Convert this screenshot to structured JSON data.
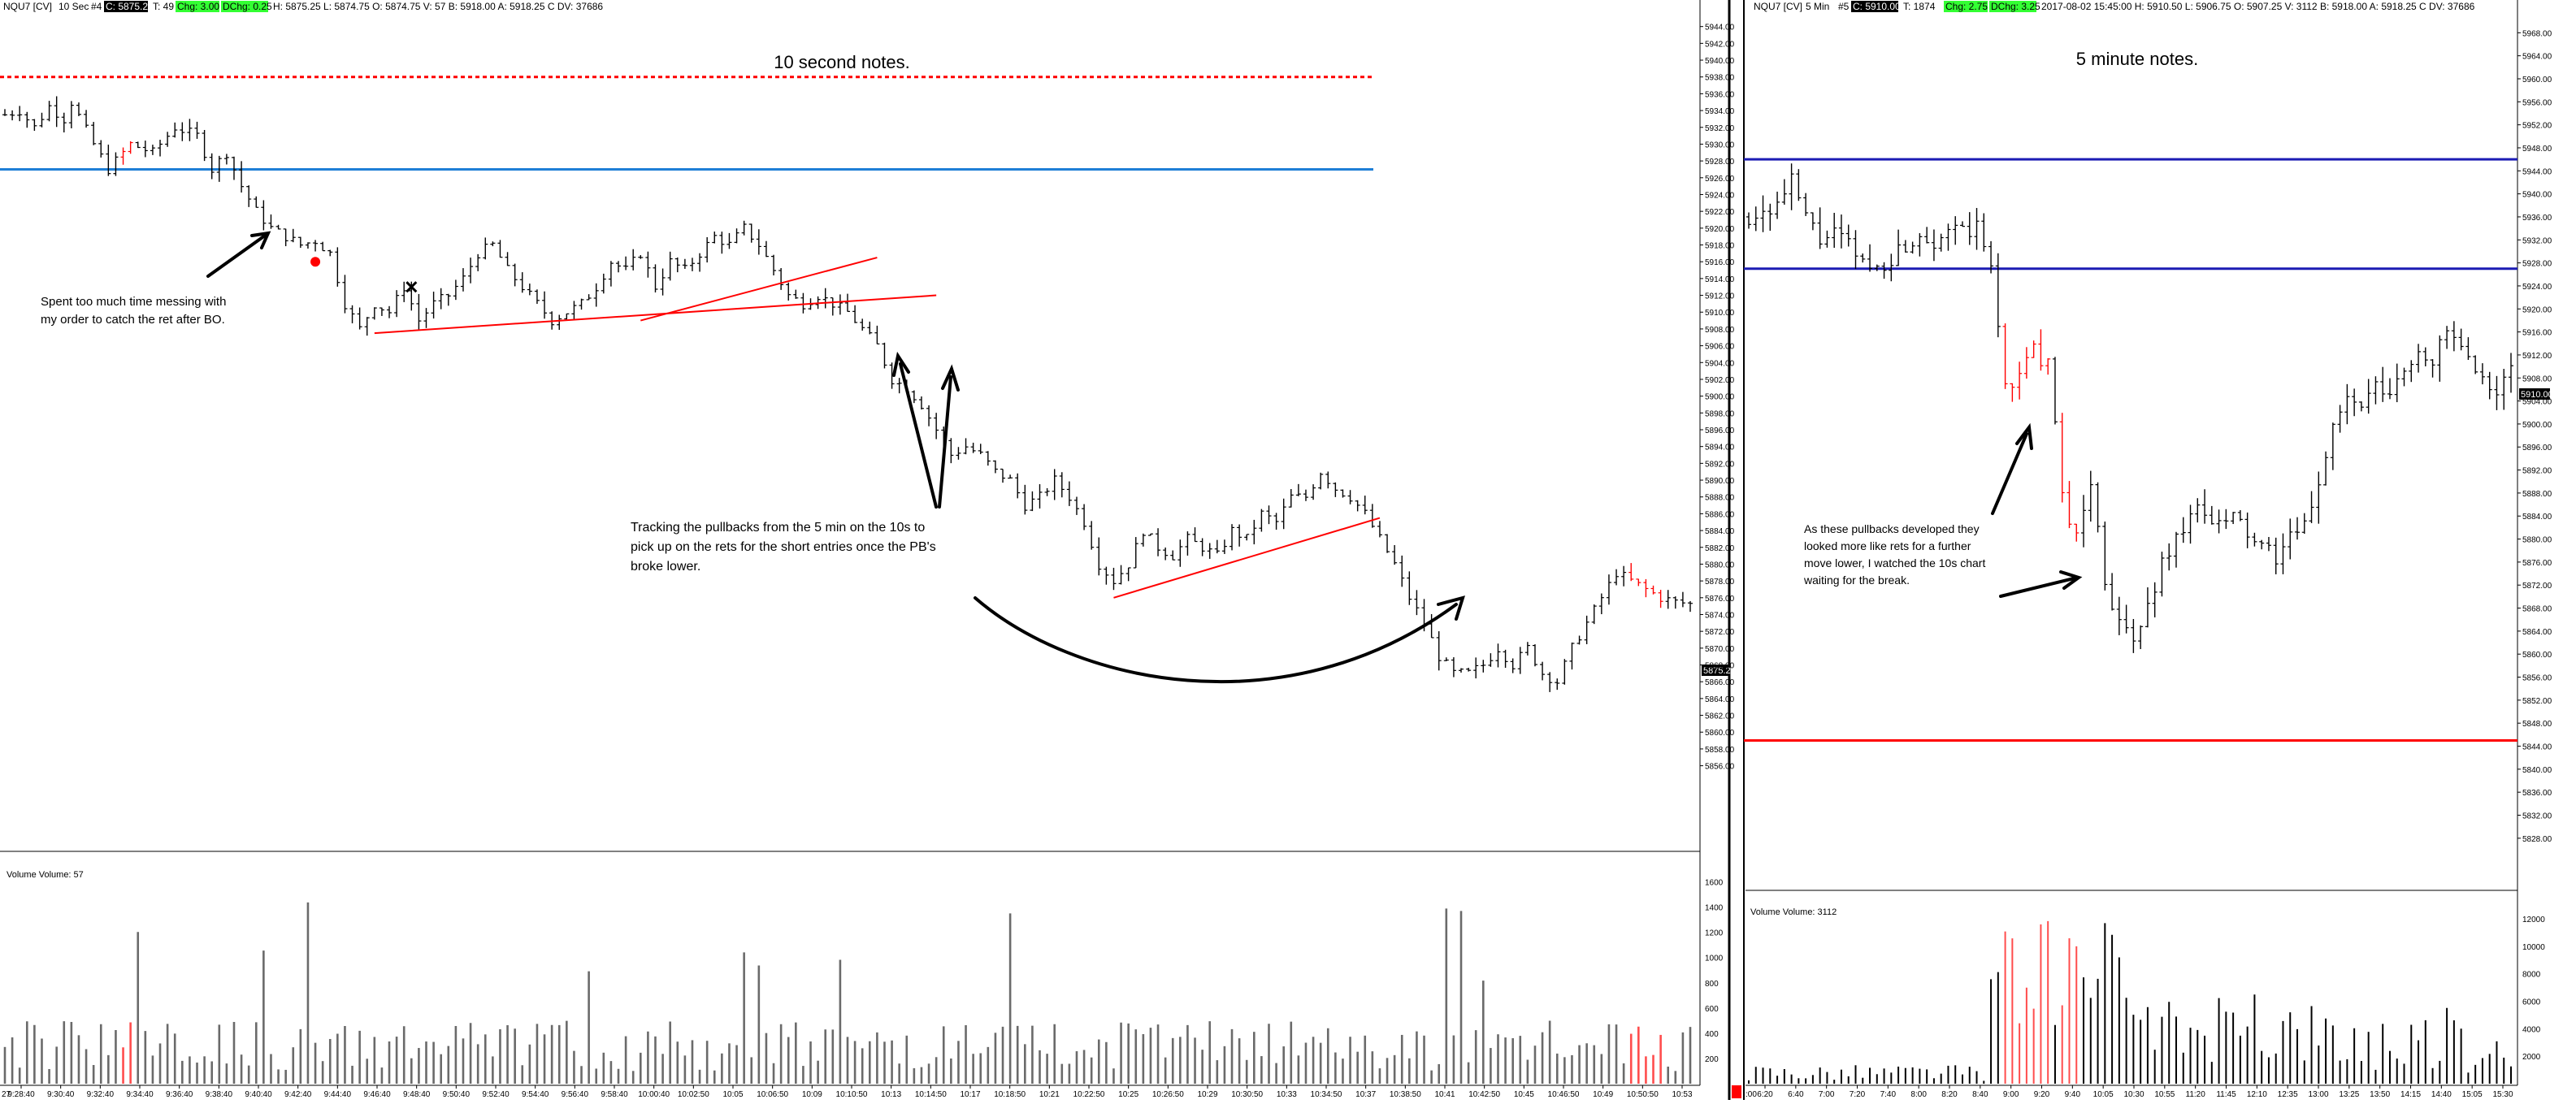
{
  "colors": {
    "green": "#33ff33",
    "red": "#ff0000",
    "blue": "#1f7fd6",
    "navy": "#1c1cb4",
    "black": "#000000",
    "gray": "#6a6a6a"
  },
  "left": {
    "header": {
      "symbol": "NQU7 [CV]",
      "period": "10 Sec",
      "id": "#4",
      "close": "C: 5875.25",
      "ticks": "T: 49",
      "chg1": "Chg: 3.00",
      "chg2": "DChg: 0.25",
      "info": "H: 5875.25 L: 5874.75 O: 5874.75 V: 57 B: 5918.00 A: 5918.25 C DV: 37686"
    },
    "title": "10 second notes.",
    "notes": [
      [
        "Spent too much time messing with",
        "my order to catch the ret after BO."
      ],
      [
        "Tracking the pullbacks from the 5 min on the 10s to",
        "pick up on the rets for the short entries once the PB's",
        "broke lower."
      ]
    ],
    "volume_label": "Volume  Volume: 57",
    "last_price": "5875.25",
    "x_first": "27"
  },
  "right": {
    "header": {
      "symbol": "NQU7 [CV]",
      "period": "5 Min",
      "id": "#5",
      "close": "C: 5910.00",
      "ticks": "T: 1874",
      "chg1": "Chg: 2.75",
      "chg2": "DChg: 3.25",
      "info": "2017-08-02 15:45:00 H: 5910.50 L: 5906.75 O: 5907.25 V: 3112 B: 5918.00 A: 5918.25 C DV: 37686"
    },
    "title": "5 minute notes.",
    "notes": [
      [
        "As these pullbacks developed they",
        "looked more like rets for a further",
        "move lower, I watched the 10s chart",
        "waiting for the break."
      ]
    ],
    "volume_label": "Volume  Volume: 3112",
    "last_price": "5910.00",
    "x_first": ":00"
  },
  "chart_data": [
    {
      "type": "bar",
      "title": "10 second notes.",
      "style": "ohlc",
      "ylim": [
        5846,
        5946
      ],
      "y_ticks": [
        "5944.00",
        "5942.00",
        "5940.00",
        "5938.00",
        "5936.00",
        "5934.00",
        "5932.00",
        "5930.00",
        "5928.00",
        "5926.00",
        "5924.00",
        "5922.00",
        "5920.00",
        "5918.00",
        "5916.00",
        "5914.00",
        "5912.00",
        "5910.00",
        "5908.00",
        "5906.00",
        "5904.00",
        "5902.00",
        "5900.00",
        "5898.00",
        "5896.00",
        "5894.00",
        "5892.00",
        "5890.00",
        "5888.00",
        "5886.00",
        "5884.00",
        "5882.00",
        "5880.00",
        "5878.00",
        "5876.00",
        "5874.00",
        "5872.00",
        "5870.00",
        "5868.00",
        "5866.00",
        "5864.00",
        "5862.00",
        "5860.00",
        "5858.00",
        "5856.00"
      ],
      "x_ticks": [
        "9:28:40",
        "9:30:40",
        "9:32:40",
        "9:34:40",
        "9:36:40",
        "9:38:40",
        "9:40:40",
        "9:42:40",
        "9:44:40",
        "9:46:40",
        "9:48:40",
        "9:50:40",
        "9:52:40",
        "9:54:40",
        "9:56:40",
        "9:58:40",
        "10:00:40",
        "10:02:50",
        "10:05",
        "10:06:50",
        "10:09",
        "10:10:50",
        "10:13",
        "10:14:50",
        "10:17",
        "10:18:50",
        "10:21",
        "10:22:50",
        "10:25",
        "10:26:50",
        "10:29",
        "10:30:50",
        "10:33",
        "10:34:50",
        "10:37",
        "10:38:50",
        "10:41",
        "10:42:50",
        "10:45",
        "10:46:50",
        "10:49",
        "10:50:50",
        "10:53"
      ],
      "price_path": [
        [
          0,
          5933.5
        ],
        [
          2,
          5934
        ],
        [
          4,
          5932
        ],
        [
          6,
          5934.5
        ],
        [
          8,
          5933
        ],
        [
          9,
          5935
        ],
        [
          12,
          5930
        ],
        [
          14,
          5927
        ],
        [
          17,
          5930
        ],
        [
          20,
          5929
        ],
        [
          23,
          5932
        ],
        [
          26,
          5931
        ],
        [
          28,
          5927
        ],
        [
          30,
          5929
        ],
        [
          32,
          5925
        ],
        [
          34,
          5922
        ],
        [
          36,
          5920
        ],
        [
          38,
          5919
        ],
        [
          40,
          5918
        ],
        [
          42,
          5918.5
        ],
        [
          44,
          5917
        ],
        [
          46,
          5911
        ],
        [
          48,
          5908
        ],
        [
          50,
          5911
        ],
        [
          52,
          5910
        ],
        [
          54,
          5913
        ],
        [
          56,
          5909
        ],
        [
          58,
          5911
        ],
        [
          60,
          5912
        ],
        [
          62,
          5914
        ],
        [
          64,
          5917
        ],
        [
          66,
          5918
        ],
        [
          68,
          5915
        ],
        [
          70,
          5913
        ],
        [
          72,
          5911
        ],
        [
          74,
          5909
        ],
        [
          76,
          5910
        ],
        [
          78,
          5911
        ],
        [
          80,
          5913
        ],
        [
          82,
          5916
        ],
        [
          84,
          5915
        ],
        [
          86,
          5917
        ],
        [
          88,
          5913
        ],
        [
          90,
          5916
        ],
        [
          92,
          5915
        ],
        [
          94,
          5917
        ],
        [
          96,
          5919
        ],
        [
          98,
          5918
        ],
        [
          100,
          5920
        ],
        [
          102,
          5918
        ],
        [
          104,
          5915
        ],
        [
          106,
          5912
        ],
        [
          108,
          5911
        ],
        [
          110,
          5912
        ],
        [
          112,
          5911
        ],
        [
          114,
          5910
        ],
        [
          116,
          5908
        ],
        [
          118,
          5906
        ],
        [
          120,
          5902
        ],
        [
          122,
          5901
        ],
        [
          124,
          5899
        ],
        [
          126,
          5896
        ],
        [
          128,
          5893
        ],
        [
          130,
          5894
        ],
        [
          132,
          5893
        ],
        [
          134,
          5891
        ],
        [
          136,
          5890
        ],
        [
          138,
          5887
        ],
        [
          140,
          5888
        ],
        [
          142,
          5890
        ],
        [
          144,
          5888
        ],
        [
          146,
          5885
        ],
        [
          148,
          5880
        ],
        [
          150,
          5878
        ],
        [
          152,
          5880
        ],
        [
          154,
          5884
        ],
        [
          156,
          5882
        ],
        [
          158,
          5881
        ],
        [
          160,
          5883
        ],
        [
          162,
          5882
        ],
        [
          164,
          5881
        ],
        [
          166,
          5884
        ],
        [
          168,
          5883
        ],
        [
          170,
          5886
        ],
        [
          172,
          5885
        ],
        [
          174,
          5888
        ],
        [
          176,
          5888
        ],
        [
          178,
          5891
        ],
        [
          180,
          5889
        ],
        [
          182,
          5888
        ],
        [
          184,
          5886
        ],
        [
          186,
          5883
        ],
        [
          188,
          5880
        ],
        [
          190,
          5876
        ],
        [
          192,
          5873
        ],
        [
          194,
          5869
        ],
        [
          196,
          5867
        ],
        [
          198,
          5867
        ],
        [
          200,
          5868
        ],
        [
          202,
          5870
        ],
        [
          204,
          5868
        ],
        [
          206,
          5870
        ],
        [
          208,
          5867
        ],
        [
          210,
          5866
        ],
        [
          212,
          5870
        ],
        [
          214,
          5873
        ],
        [
          216,
          5876
        ],
        [
          218,
          5879
        ],
        [
          220,
          5878
        ],
        [
          222,
          5877
        ],
        [
          224,
          5876
        ],
        [
          226,
          5875.5
        ],
        [
          228,
          5875.25
        ]
      ],
      "levels": [
        {
          "price": 5938,
          "style": "dashed",
          "color": "red"
        },
        {
          "price": 5927,
          "color": "blue"
        }
      ],
      "trendlines": [
        {
          "from": [
            50,
            5907.5
          ],
          "to": [
            126,
            5912
          ]
        },
        {
          "from": [
            86,
            5909
          ],
          "to": [
            118,
            5916.5
          ]
        },
        {
          "from": [
            150,
            5876
          ],
          "to": [
            186,
            5885.5
          ]
        }
      ],
      "markers": [
        {
          "type": "dot",
          "at": [
            42,
            5916
          ]
        },
        {
          "type": "cross",
          "at": [
            55,
            5913
          ]
        }
      ],
      "volume_axis": [
        "1600",
        "1400",
        "1200",
        "1000",
        "800",
        "600",
        "400",
        "200"
      ],
      "volume_ylim": [
        0,
        1700
      ],
      "volume_seed": 7
    },
    {
      "type": "bar",
      "title": "5 minute notes.",
      "style": "ohlc",
      "ylim": [
        5826,
        5972
      ],
      "y_ticks": [
        "5968.00",
        "5964.00",
        "5960.00",
        "5956.00",
        "5952.00",
        "5948.00",
        "5944.00",
        "5940.00",
        "5936.00",
        "5932.00",
        "5928.00",
        "5924.00",
        "5920.00",
        "5916.00",
        "5912.00",
        "5908.00",
        "5904.00",
        "5900.00",
        "5896.00",
        "5892.00",
        "5888.00",
        "5884.00",
        "5880.00",
        "5876.00",
        "5872.00",
        "5868.00",
        "5864.00",
        "5860.00",
        "5856.00",
        "5852.00",
        "5848.00",
        "5844.00",
        "5840.00",
        "5836.00",
        "5832.00",
        "5828.00"
      ],
      "x_ticks": [
        "6:20",
        "6:40",
        "7:00",
        "7:20",
        "7:40",
        "8:00",
        "8:20",
        "8:40",
        "9:00",
        "9:20",
        "9:40",
        "10:05",
        "10:30",
        "10:55",
        "11:20",
        "11:45",
        "12:10",
        "12:35",
        "13:00",
        "13:25",
        "13:50",
        "14:15",
        "14:40",
        "15:05",
        "15:30"
      ],
      "price_path": [
        [
          0,
          5936
        ],
        [
          2,
          5937
        ],
        [
          4,
          5938
        ],
        [
          6,
          5942
        ],
        [
          8,
          5936
        ],
        [
          10,
          5932
        ],
        [
          12,
          5933
        ],
        [
          14,
          5931
        ],
        [
          16,
          5928
        ],
        [
          18,
          5927
        ],
        [
          20,
          5929
        ],
        [
          22,
          5931
        ],
        [
          24,
          5933
        ],
        [
          26,
          5932
        ],
        [
          28,
          5934
        ],
        [
          30,
          5933
        ],
        [
          32,
          5934
        ],
        [
          34,
          5927
        ],
        [
          36,
          5907
        ],
        [
          38,
          5908
        ],
        [
          40,
          5913
        ],
        [
          42,
          5910
        ],
        [
          44,
          5888
        ],
        [
          46,
          5880
        ],
        [
          48,
          5890
        ],
        [
          50,
          5873
        ],
        [
          52,
          5865
        ],
        [
          54,
          5862
        ],
        [
          56,
          5868
        ],
        [
          58,
          5876
        ],
        [
          60,
          5880
        ],
        [
          62,
          5885
        ],
        [
          64,
          5884
        ],
        [
          66,
          5882
        ],
        [
          68,
          5884
        ],
        [
          70,
          5881
        ],
        [
          72,
          5878
        ],
        [
          74,
          5877
        ],
        [
          76,
          5880
        ],
        [
          78,
          5882
        ],
        [
          80,
          5890
        ],
        [
          82,
          5900
        ],
        [
          84,
          5904
        ],
        [
          86,
          5903
        ],
        [
          88,
          5906
        ],
        [
          90,
          5905
        ],
        [
          92,
          5909
        ],
        [
          94,
          5913
        ],
        [
          96,
          5911
        ],
        [
          98,
          5916
        ],
        [
          100,
          5913
        ],
        [
          102,
          5908
        ],
        [
          104,
          5906
        ],
        [
          106,
          5907
        ],
        [
          107,
          5910
        ]
      ],
      "levels": [
        {
          "price": 5946,
          "color": "navy"
        },
        {
          "price": 5927,
          "color": "navy"
        },
        {
          "price": 5845,
          "color": "red"
        }
      ],
      "volume_axis": [
        "12000",
        "10000",
        "8000",
        "6000",
        "4000",
        "2000"
      ],
      "volume_ylim": [
        0,
        13000
      ],
      "volume_seed": 21
    }
  ]
}
